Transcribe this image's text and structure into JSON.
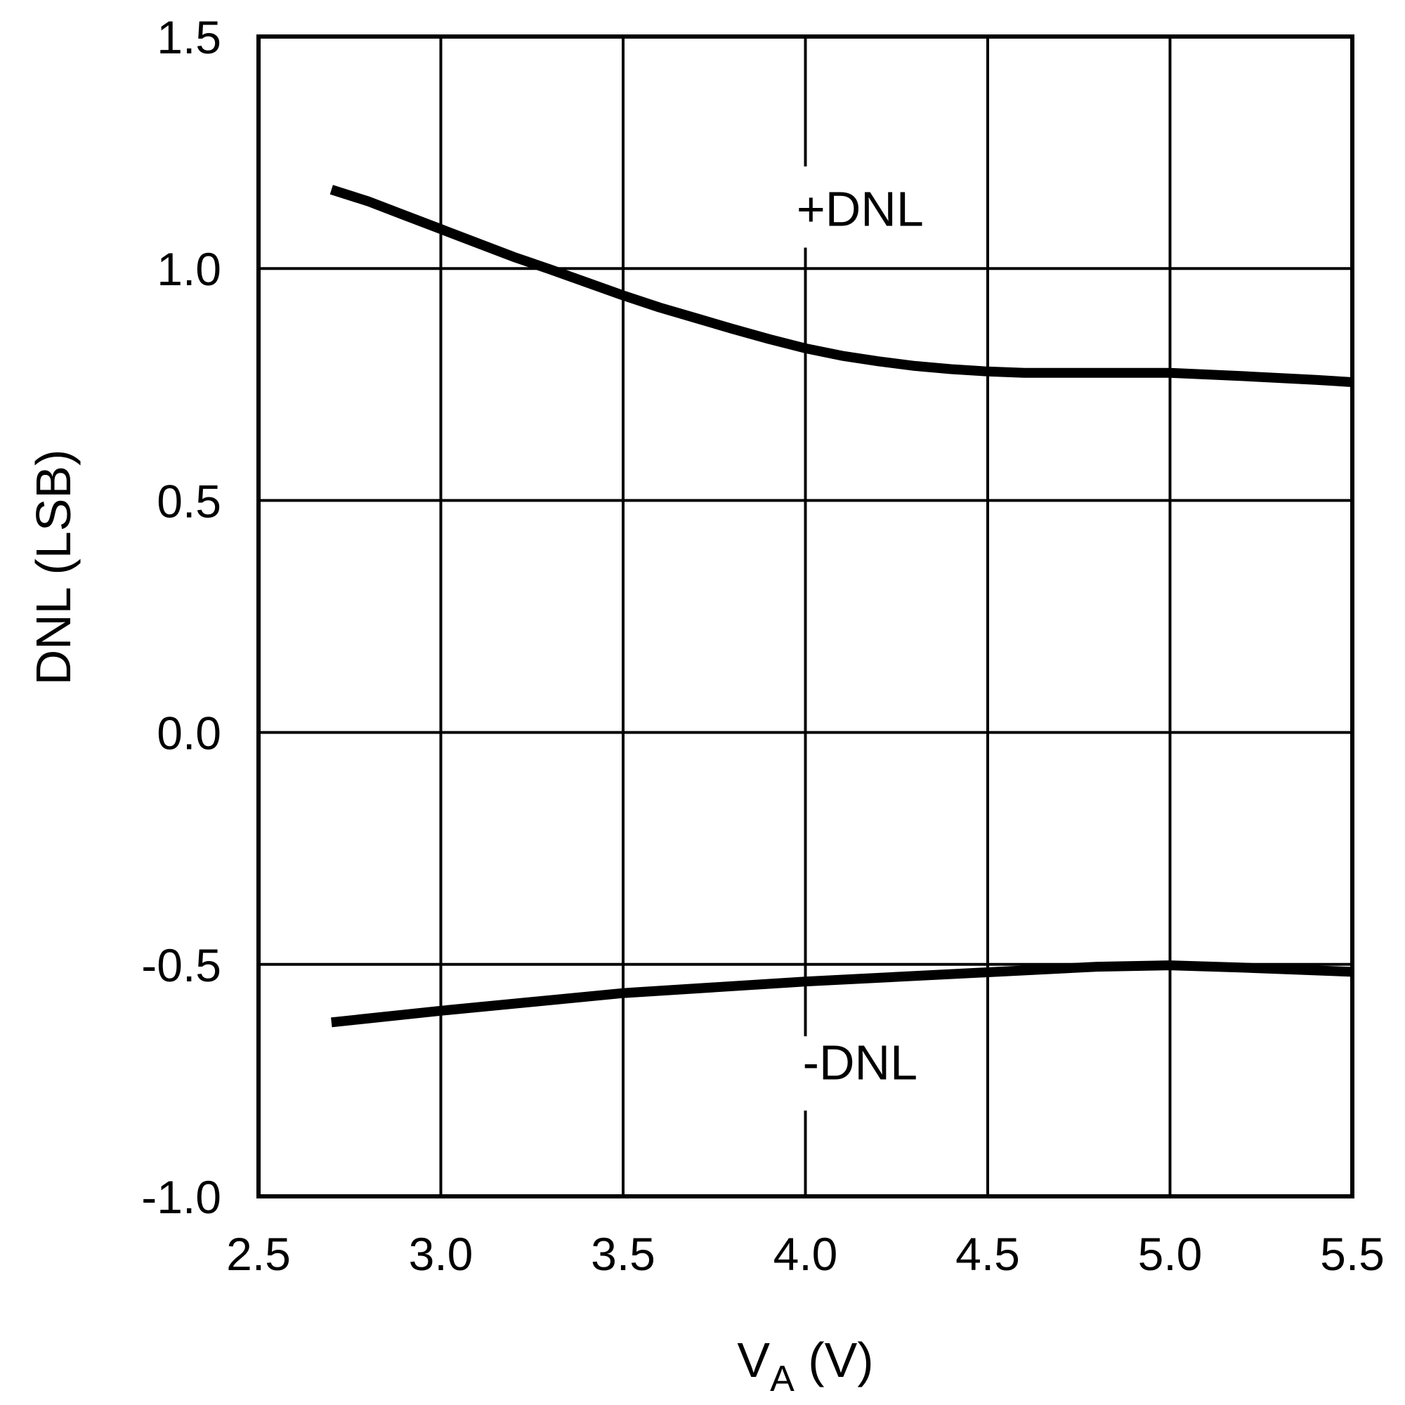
{
  "chart_data": {
    "type": "line",
    "title": "",
    "xlabel": "V",
    "xlabel_subscript": "A",
    "xlabel_unit": " (V)",
    "ylabel": "DNL (LSB)",
    "xlim": [
      2.5,
      5.5
    ],
    "ylim": [
      -1.0,
      1.5
    ],
    "xticks": [
      "2.5",
      "3.0",
      "3.5",
      "4.0",
      "4.5",
      "5.0",
      "5.5"
    ],
    "yticks": [
      "1.5",
      "1.0",
      "0.5",
      "0.0",
      "-0.5",
      "-1.0"
    ],
    "grid": true,
    "series": [
      {
        "name": "+DNL",
        "x": [
          2.7,
          2.8,
          2.9,
          3.0,
          3.1,
          3.2,
          3.3,
          3.4,
          3.5,
          3.6,
          3.7,
          3.8,
          3.9,
          4.0,
          4.1,
          4.2,
          4.3,
          4.4,
          4.5,
          4.6,
          4.8,
          5.0,
          5.2,
          5.4,
          5.5
        ],
        "y": [
          1.17,
          1.145,
          1.115,
          1.085,
          1.055,
          1.025,
          0.998,
          0.97,
          0.942,
          0.916,
          0.893,
          0.87,
          0.848,
          0.828,
          0.812,
          0.8,
          0.79,
          0.783,
          0.778,
          0.775,
          0.775,
          0.775,
          0.768,
          0.76,
          0.755
        ]
      },
      {
        "name": "-DNL",
        "x": [
          2.7,
          3.0,
          3.5,
          4.0,
          4.5,
          4.8,
          5.0,
          5.2,
          5.5
        ],
        "y": [
          -0.625,
          -0.6,
          -0.562,
          -0.537,
          -0.517,
          -0.505,
          -0.502,
          -0.507,
          -0.516
        ]
      }
    ],
    "annotations": [
      {
        "text": "+DNL",
        "x": 4.15,
        "y": 1.12
      },
      {
        "text": "-DNL",
        "x": 4.15,
        "y": -0.72
      }
    ]
  }
}
